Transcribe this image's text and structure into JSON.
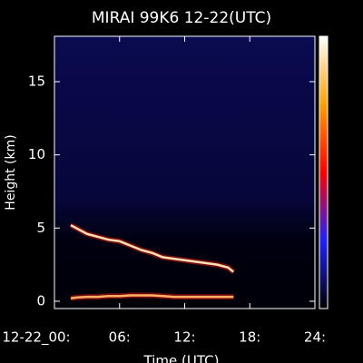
{
  "chart_data": {
    "type": "line",
    "title": "MIRAI 99K6 12-22(UTC)",
    "xlabel": "Time (UTC)",
    "ylabel": "Height (km)",
    "x": [
      1.5,
      2,
      3,
      4,
      5,
      6,
      7,
      8,
      9,
      10,
      11,
      12,
      13,
      14,
      15,
      16,
      16.5
    ],
    "series": [
      {
        "color": "#ffe0b0",
        "values": [
          5.2,
          5.0,
          4.6,
          4.4,
          4.2,
          4.1,
          3.8,
          3.5,
          3.3,
          3.0,
          2.9,
          2.8,
          2.7,
          2.6,
          2.5,
          2.3,
          2.0
        ]
      },
      {
        "color": "#ffb060",
        "values": [
          0.2,
          0.25,
          0.3,
          0.3,
          0.35,
          0.35,
          0.4,
          0.4,
          0.4,
          0.35,
          0.3,
          0.3,
          0.3,
          0.3,
          0.3,
          0.3,
          0.3
        ]
      }
    ],
    "xlim": [
      0,
      24
    ],
    "xticks": [
      {
        "value": 0,
        "label": "12-22_00:"
      },
      {
        "value": 6,
        "label": "06:"
      },
      {
        "value": 12,
        "label": "12:"
      },
      {
        "value": 18,
        "label": "18:"
      },
      {
        "value": 24,
        "label": "24:"
      }
    ],
    "ylim": [
      -0.5,
      18.1
    ],
    "yticks": [
      0,
      5,
      10,
      15
    ]
  }
}
